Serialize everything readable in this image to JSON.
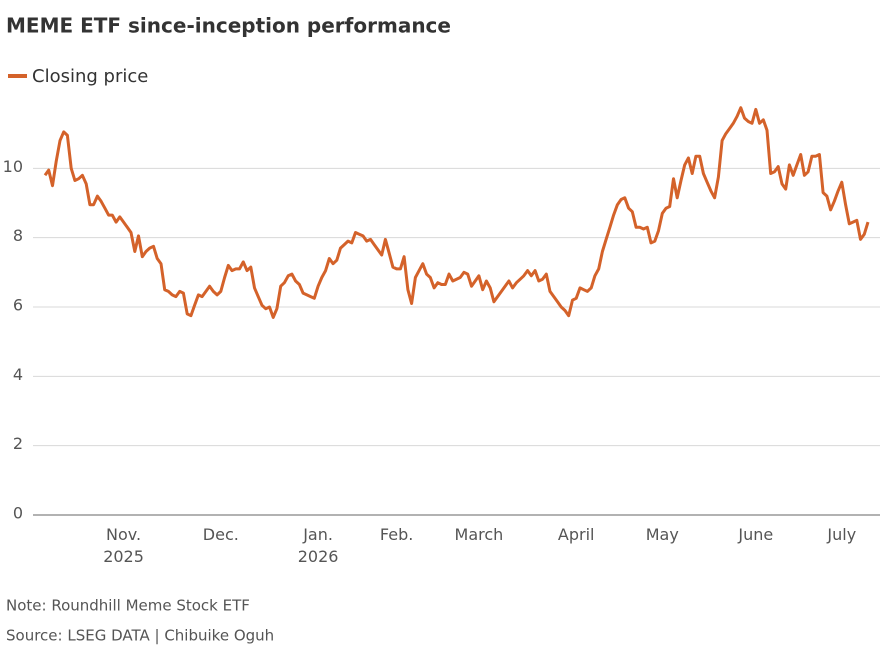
{
  "chart_data": {
    "type": "line",
    "title": "MEME ETF since-inception performance",
    "note": "Note: Roundhill Meme Stock ETF",
    "source": "Source: LSEG DATA | Chibuike Oguh",
    "categories": [
      null,
      null,
      null,
      null,
      null,
      null,
      null,
      null,
      null,
      null,
      null,
      null,
      null,
      null,
      null,
      null,
      null,
      null,
      null,
      null,
      null,
      "Nov. 2025",
      null,
      null,
      null,
      null,
      null,
      null,
      null,
      null,
      null,
      null,
      null,
      null,
      null,
      null,
      null,
      null,
      null,
      null,
      null,
      null,
      null,
      null,
      null,
      null,
      null,
      "Dec.",
      null,
      null,
      null,
      null,
      null,
      null,
      null,
      null,
      null,
      null,
      null,
      null,
      null,
      null,
      null,
      null,
      null,
      null,
      null,
      null,
      null,
      null,
      null,
      null,
      null,
      "Jan. 2026",
      null,
      null,
      null,
      null,
      null,
      null,
      null,
      null,
      null,
      null,
      null,
      null,
      null,
      null,
      null,
      null,
      null,
      null,
      null,
      null,
      "Feb.",
      null,
      null,
      null,
      null,
      null,
      null,
      null,
      null,
      null,
      null,
      null,
      null,
      null,
      null,
      null,
      null,
      null,
      null,
      null,
      null,
      null,
      "March",
      null,
      null,
      null,
      null,
      null,
      null,
      null,
      null,
      null,
      null,
      null,
      null,
      null,
      null,
      null,
      null,
      null,
      null,
      null,
      null,
      null,
      null,
      null,
      null,
      null,
      "April",
      null,
      null,
      null,
      null,
      null,
      null,
      null,
      null,
      null,
      null,
      null,
      null,
      null,
      null,
      null,
      null,
      null,
      null,
      null,
      null,
      null,
      null,
      "May",
      null,
      null,
      null,
      null,
      null,
      null,
      null,
      null,
      null,
      null,
      null,
      null,
      null,
      null,
      null,
      null,
      null,
      null,
      null,
      null,
      null,
      null,
      null,
      null,
      "June",
      null,
      null,
      null,
      null,
      null,
      null,
      null,
      null,
      null,
      null,
      null,
      null,
      null,
      null,
      null,
      null,
      null,
      null,
      null,
      null,
      null,
      null,
      "July",
      null,
      null,
      null,
      null,
      null,
      null,
      null
    ],
    "series": [
      {
        "name": "Closing price",
        "color": "#d4622a",
        "values": [
          9.8,
          9.95,
          9.5,
          10.2,
          10.8,
          11.05,
          10.95,
          10.0,
          9.65,
          9.7,
          9.8,
          9.55,
          8.95,
          8.95,
          9.2,
          9.05,
          8.85,
          8.65,
          8.65,
          8.45,
          8.6,
          8.45,
          8.3,
          8.15,
          7.6,
          8.05,
          7.45,
          7.6,
          7.7,
          7.75,
          7.4,
          7.25,
          6.5,
          6.45,
          6.35,
          6.3,
          6.45,
          6.4,
          5.8,
          5.75,
          6.05,
          6.35,
          6.3,
          6.45,
          6.6,
          6.45,
          6.35,
          6.45,
          6.85,
          7.2,
          7.05,
          7.1,
          7.1,
          7.3,
          7.05,
          7.15,
          6.55,
          6.3,
          6.05,
          5.95,
          6.0,
          5.7,
          5.95,
          6.6,
          6.7,
          6.9,
          6.95,
          6.75,
          6.65,
          6.4,
          6.35,
          6.3,
          6.25,
          6.6,
          6.85,
          7.05,
          7.4,
          7.25,
          7.35,
          7.7,
          7.8,
          7.9,
          7.85,
          8.15,
          8.1,
          8.05,
          7.9,
          7.95,
          7.8,
          7.65,
          7.5,
          7.95,
          7.55,
          7.15,
          7.1,
          7.1,
          7.45,
          6.5,
          6.1,
          6.85,
          7.05,
          7.25,
          6.95,
          6.85,
          6.55,
          6.7,
          6.65,
          6.65,
          6.95,
          6.75,
          6.8,
          6.85,
          7.0,
          6.95,
          6.6,
          6.75,
          6.9,
          6.5,
          6.75,
          6.55,
          6.15,
          6.3,
          6.45,
          6.6,
          6.75,
          6.55,
          6.7,
          6.8,
          6.9,
          7.05,
          6.9,
          7.05,
          6.75,
          6.8,
          6.95,
          6.45,
          6.3,
          6.15,
          6.0,
          5.9,
          5.75,
          6.2,
          6.25,
          6.55,
          6.5,
          6.45,
          6.55,
          6.9,
          7.1,
          7.6,
          7.95,
          8.3,
          8.65,
          8.95,
          9.1,
          9.15,
          8.85,
          8.75,
          8.3,
          8.3,
          8.25,
          8.3,
          7.85,
          7.9,
          8.2,
          8.7,
          8.85,
          8.9,
          9.7,
          9.15,
          9.65,
          10.1,
          10.3,
          9.85,
          10.35,
          10.35,
          9.85,
          9.6,
          9.35,
          9.15,
          9.75,
          10.8,
          11.0,
          11.15,
          11.3,
          11.5,
          11.75,
          11.45,
          11.35,
          11.3,
          11.7,
          11.3,
          11.4,
          11.1,
          9.85,
          9.9,
          10.05,
          9.55,
          9.4,
          10.1,
          9.8,
          10.1,
          10.4,
          9.8,
          9.9,
          10.35,
          10.35,
          10.4,
          9.3,
          9.2,
          8.8,
          9.05,
          9.35,
          9.6,
          8.95,
          8.4,
          8.45,
          8.5,
          7.95,
          8.1,
          8.45
        ]
      }
    ],
    "ylim": [
      0,
      12
    ],
    "yticks": [
      0,
      2,
      4,
      6,
      8,
      10
    ],
    "grid": true,
    "legend": "top-left"
  }
}
